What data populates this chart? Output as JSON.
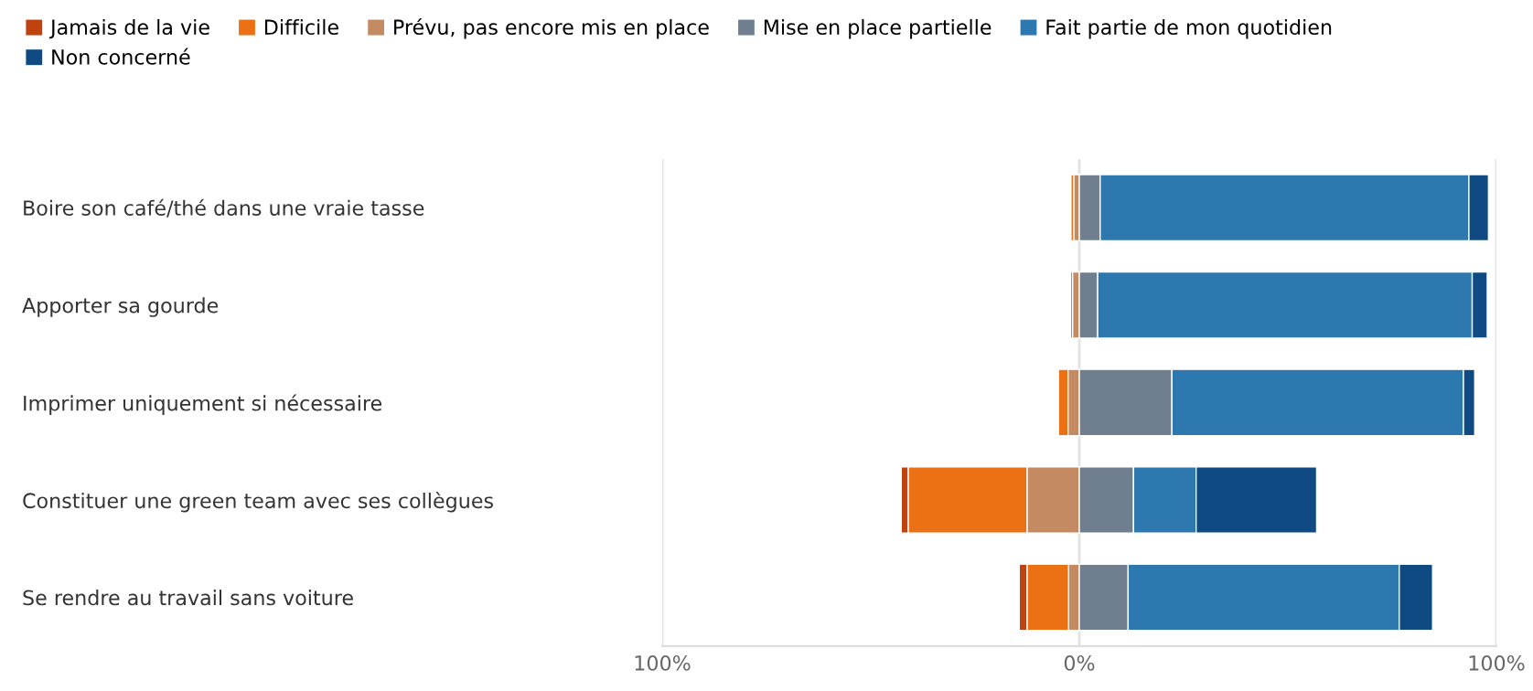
{
  "chart_data": {
    "type": "bar",
    "orientation": "horizontal",
    "categories": [
      "Boire son café/thé dans une vraie tasse",
      "Apporter sa gourde",
      "Imprimer uniquement si nécessaire",
      "Constituer une green team avec ses collègues",
      "Se rendre au travail sans voiture"
    ],
    "series": [
      {
        "name": "Jamais de la vie",
        "color": "#c0430f",
        "values": [
          null,
          null,
          null,
          1.7,
          1.9
        ],
        "base": [
          null,
          null,
          null,
          -42.7,
          -14.4
        ]
      },
      {
        "name": "Difficile",
        "color": "#ec7014",
        "values": [
          0.7,
          0.5,
          2.3,
          28.5,
          10.7
        ],
        "base": [
          -2.0,
          -2.1,
          -5.0,
          -41.0,
          -12.5
        ]
      },
      {
        "name": "Prévu, pas encore mis en place",
        "color": "#c48a62",
        "values": [
          1.3,
          1.6,
          2.7,
          12.5,
          2.6
        ],
        "base": [
          -1.3,
          -1.6,
          -2.7,
          -12.5,
          -2.6
        ]
      },
      {
        "name": "Mise en place partielle",
        "color": "#6f7f8f",
        "values": [
          5.0,
          4.4,
          22.2,
          13.0,
          11.7
        ],
        "base": [
          0,
          0,
          0,
          0,
          0
        ]
      },
      {
        "name": "Fait partie de mon quotidien",
        "color": "#2e78b0",
        "values": [
          88.4,
          89.8,
          69.9,
          15.0,
          65.0
        ],
        "base": [
          5.0,
          4.4,
          22.2,
          13.0,
          11.7
        ]
      },
      {
        "name": "Non concerné",
        "color": "#0f4b82",
        "values": [
          4.7,
          3.6,
          2.7,
          28.9,
          8.0
        ],
        "base": [
          93.4,
          94.2,
          92.1,
          28.0,
          76.7
        ]
      }
    ],
    "xlim": [
      -100,
      100
    ],
    "xticks": [
      {
        "value": -100,
        "label": "100%"
      },
      {
        "value": 0,
        "label": "0%"
      },
      {
        "value": 100,
        "label": "100%"
      }
    ],
    "grid": "x",
    "legend": "top"
  }
}
